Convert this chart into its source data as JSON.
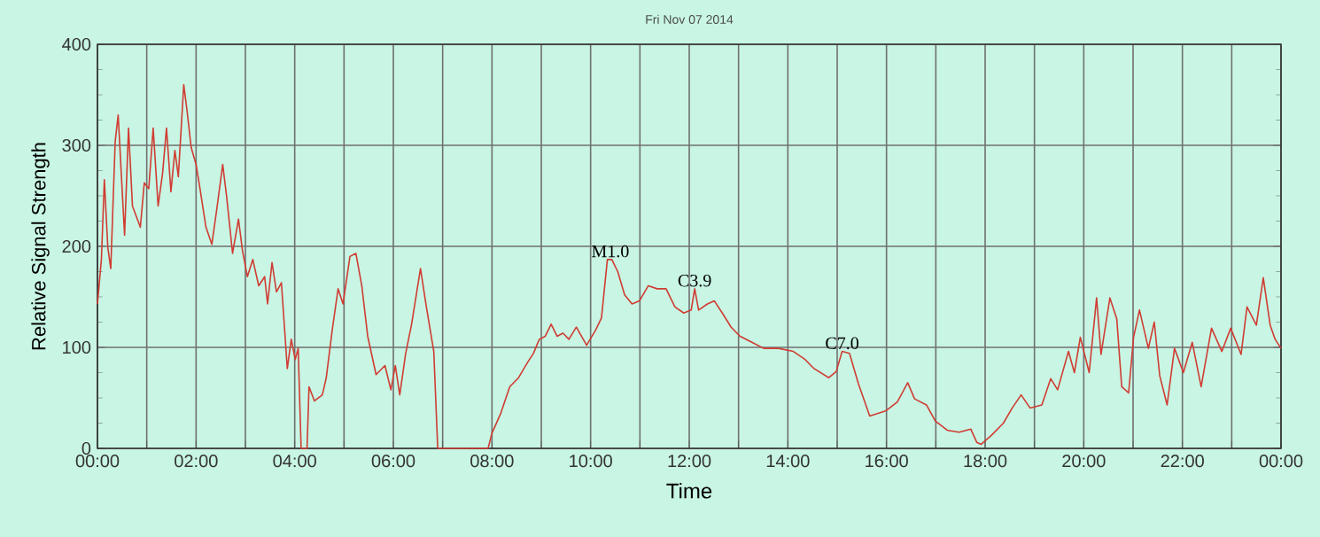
{
  "chart_data": {
    "type": "line",
    "title": "Fri Nov 07 2014",
    "xlabel": "Time",
    "ylabel": "Relative Signal Strength",
    "xlim": [
      0,
      24
    ],
    "ylim": [
      0,
      400
    ],
    "xticks": [
      {
        "value": 0,
        "label": "00:00"
      },
      {
        "value": 1,
        "label": null
      },
      {
        "value": 2,
        "label": "02:00"
      },
      {
        "value": 3,
        "label": null
      },
      {
        "value": 4,
        "label": "04:00"
      },
      {
        "value": 5,
        "label": null
      },
      {
        "value": 6,
        "label": "06:00"
      },
      {
        "value": 7,
        "label": null
      },
      {
        "value": 8,
        "label": "08:00"
      },
      {
        "value": 9,
        "label": null
      },
      {
        "value": 10,
        "label": "10:00"
      },
      {
        "value": 11,
        "label": null
      },
      {
        "value": 12,
        "label": "12:00"
      },
      {
        "value": 13,
        "label": null
      },
      {
        "value": 14,
        "label": "14:00"
      },
      {
        "value": 15,
        "label": null
      },
      {
        "value": 16,
        "label": "16:00"
      },
      {
        "value": 17,
        "label": null
      },
      {
        "value": 18,
        "label": "18:00"
      },
      {
        "value": 19,
        "label": null
      },
      {
        "value": 20,
        "label": "20:00"
      },
      {
        "value": 21,
        "label": null
      },
      {
        "value": 22,
        "label": "22:00"
      },
      {
        "value": 23,
        "label": null
      },
      {
        "value": 24,
        "label": "00:00"
      }
    ],
    "yticks": [
      0,
      100,
      200,
      300,
      400
    ],
    "grid": true,
    "marker": "none",
    "line_style": "solid",
    "annotations": [
      {
        "text": "M1.0",
        "x": 10.4,
        "y": 187
      },
      {
        "text": "C3.9",
        "x": 12.11,
        "y": 158
      },
      {
        "text": "C7.0",
        "x": 15.1,
        "y": 96
      }
    ],
    "series": [
      {
        "color": "#d03c32",
        "x": [
          0,
          0.08,
          0.14,
          0.21,
          0.27,
          0.36,
          0.42,
          0.55,
          0.63,
          0.71,
          0.8,
          0.87,
          0.95,
          1.04,
          1.13,
          1.23,
          1.32,
          1.4,
          1.49,
          1.57,
          1.64,
          1.75,
          1.82,
          1.9,
          2.0,
          2.08,
          2.2,
          2.32,
          2.42,
          2.54,
          2.62,
          2.74,
          2.86,
          2.94,
          3.04,
          3.15,
          3.27,
          3.39,
          3.45,
          3.54,
          3.63,
          3.73,
          3.85,
          3.93,
          4.01,
          4.07,
          4.13,
          4.25,
          4.29,
          4.4,
          4.56,
          4.64,
          4.76,
          4.88,
          4.98,
          5.12,
          5.24,
          5.36,
          5.48,
          5.65,
          5.83,
          5.95,
          6.04,
          6.13,
          6.25,
          6.37,
          6.55,
          6.67,
          6.82,
          6.9,
          7.92,
          8.0,
          8.18,
          8.36,
          8.54,
          8.72,
          8.84,
          8.96,
          9.08,
          9.2,
          9.32,
          9.44,
          9.56,
          9.71,
          9.92,
          10.1,
          10.22,
          10.34,
          10.43,
          10.55,
          10.69,
          10.84,
          10.99,
          11.17,
          11.35,
          11.53,
          11.71,
          11.89,
          12.04,
          12.11,
          12.19,
          12.37,
          12.51,
          12.67,
          12.85,
          13.03,
          13.27,
          13.51,
          13.81,
          14.11,
          14.35,
          14.53,
          14.83,
          14.98,
          15.1,
          15.25,
          15.43,
          15.66,
          15.98,
          16.22,
          16.43,
          16.57,
          16.81,
          16.99,
          17.23,
          17.47,
          17.71,
          17.83,
          17.92,
          18.13,
          18.37,
          18.55,
          18.73,
          18.91,
          19.15,
          19.33,
          19.47,
          19.69,
          19.81,
          19.93,
          20.11,
          20.26,
          20.35,
          20.53,
          20.67,
          20.77,
          20.91,
          21.01,
          21.13,
          21.31,
          21.43,
          21.54,
          21.69,
          21.84,
          22.02,
          22.2,
          22.38,
          22.59,
          22.8,
          22.98,
          23.19,
          23.31,
          23.5,
          23.64,
          23.78,
          23.88,
          24.0
        ],
        "values": [
          143,
          187,
          266,
          199,
          178,
          304,
          330,
          211,
          317,
          240,
          228,
          219,
          263,
          257,
          317,
          240,
          272,
          317,
          254,
          295,
          269,
          360,
          333,
          298,
          281,
          257,
          219,
          202,
          237,
          281,
          249,
          193,
          227,
          196,
          170,
          187,
          161,
          170,
          143,
          184,
          155,
          164,
          79,
          108,
          88,
          99,
          0,
          0,
          61,
          47,
          53,
          70,
          117,
          158,
          143,
          190,
          193,
          161,
          111,
          73,
          82,
          58,
          82,
          53,
          94,
          123,
          178,
          140,
          96,
          0,
          0,
          15,
          35,
          61,
          70,
          85,
          94,
          108,
          111,
          123,
          111,
          114,
          108,
          120,
          102,
          117,
          129,
          187,
          187,
          175,
          152,
          143,
          146,
          161,
          158,
          158,
          140,
          134,
          137,
          158,
          137,
          143,
          146,
          134,
          120,
          111,
          105,
          99,
          99,
          96,
          88,
          79,
          70,
          76,
          96,
          94,
          64,
          32,
          37,
          46,
          65,
          49,
          43,
          27,
          18,
          16,
          19,
          6,
          4,
          13,
          25,
          40,
          53,
          40,
          43,
          69,
          58,
          96,
          75,
          110,
          75,
          149,
          93,
          149,
          128,
          61,
          55,
          110,
          137,
          99,
          125,
          72,
          43,
          99,
          75,
          105,
          61,
          119,
          96,
          119,
          93,
          140,
          122,
          169,
          122,
          108,
          99
        ]
      }
    ]
  }
}
